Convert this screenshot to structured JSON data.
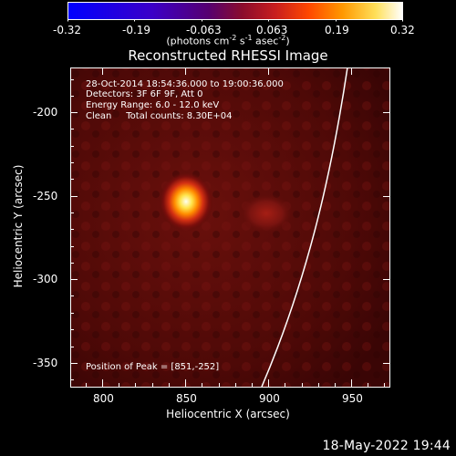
{
  "colorbar": {
    "ticks": [
      "-0.32",
      "-0.19",
      "-0.063",
      "0.063",
      "0.19",
      "0.32"
    ],
    "units_prefix": "(photons cm",
    "units_exp1": "-2",
    "units_mid": " s",
    "units_exp2": "-1",
    "units_mid2": " asec",
    "units_exp3": "-2",
    "units_suffix": ")"
  },
  "title": "Reconstructed RHESSI Image",
  "annotations": {
    "line1": "28-Oct-2014 18:54:36.000 to 19:00:36.000",
    "line2": "Detectors: 3F 6F 9F, Att 0",
    "line3": "Energy Range: 6.0 - 12.0 keV",
    "line4": "Clean     Total counts: 8.30E+04",
    "peak": "Position of Peak = [851,-252]"
  },
  "axes": {
    "x_title": "Heliocentric X (arcsec)",
    "y_title": "Heliocentric Y (arcsec)",
    "x_ticks": [
      "800",
      "850",
      "900",
      "950"
    ],
    "y_ticks": [
      "-200",
      "-250",
      "-300",
      "-350"
    ]
  },
  "footer": "18-May-2022 19:44",
  "colors": {
    "foreground": "#ffffff",
    "background": "#000000"
  }
}
